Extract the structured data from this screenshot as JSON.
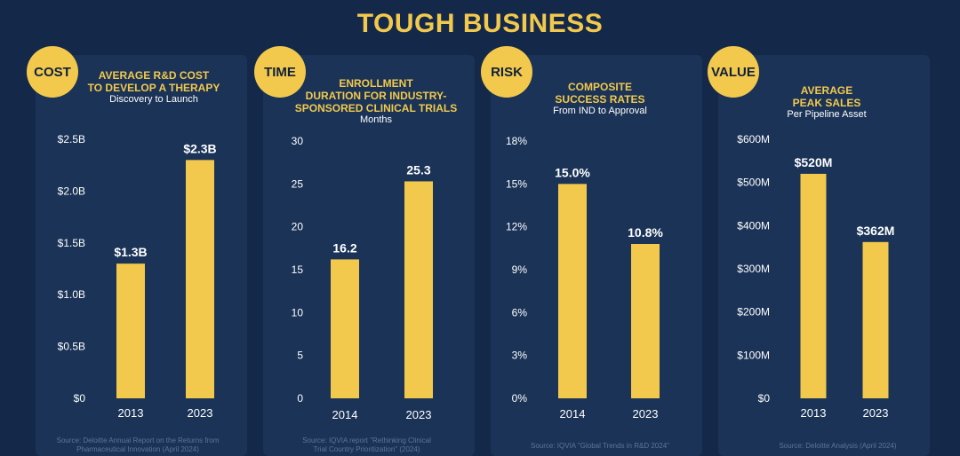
{
  "title": "TOUGH BUSINESS",
  "colors": {
    "accent": "#f2c94c",
    "background": "#14294a",
    "panel": "#1a3357"
  },
  "panels": [
    {
      "badge": "COST",
      "title_lines": [
        "AVERAGE R&D COST",
        "TO DEVELOP A THERAPY"
      ],
      "subtitle": "Discovery to Launch",
      "source_lines": [
        "Source: Deloitte Annual Report on the Returns from",
        "Pharmaceutical Innovation (April 2024)"
      ]
    },
    {
      "badge": "TIME",
      "title_lines": [
        "ENROLLMENT",
        "DURATION FOR INDUSTRY-",
        "SPONSORED CLINICAL TRIALS"
      ],
      "subtitle": "Months",
      "source_lines": [
        "Source: IQVIA report \"Rethinking Clinical",
        "Trial Country Prioritization\" (2024)"
      ]
    },
    {
      "badge": "RISK",
      "title_lines": [
        "COMPOSITE",
        "SUCCESS RATES"
      ],
      "subtitle": "From IND to Approval",
      "source_lines": [
        "Source: IQVIA \"Global Trends in R&D 2024\""
      ]
    },
    {
      "badge": "VALUE",
      "title_lines": [
        "AVERAGE",
        "PEAK SALES"
      ],
      "subtitle": "Per Pipeline Asset",
      "source_lines": [
        "Source: Deloitte Analysis (April 2024)"
      ]
    }
  ],
  "chart_data": [
    {
      "type": "bar",
      "title": "AVERAGE R&D COST TO DEVELOP A THERAPY",
      "subtitle": "Discovery to Launch",
      "categories": [
        "2013",
        "2023"
      ],
      "values": [
        1.3,
        2.3
      ],
      "value_labels": [
        "$1.3B",
        "$2.3B"
      ],
      "unit": "USD billions",
      "ylim": [
        0,
        2.5
      ],
      "yticks": [
        0,
        0.5,
        1.0,
        1.5,
        2.0,
        2.5
      ],
      "ytick_labels": [
        "$0",
        "$0.5B",
        "$1.0B",
        "$1.5B",
        "$2.0B",
        "$2.5B"
      ],
      "grid": false
    },
    {
      "type": "bar",
      "title": "ENROLLMENT DURATION FOR INDUSTRY-SPONSORED CLINICAL TRIALS",
      "subtitle": "Months",
      "categories": [
        "2014",
        "2023"
      ],
      "values": [
        16.2,
        25.3
      ],
      "value_labels": [
        "16.2",
        "25.3"
      ],
      "unit": "months",
      "ylim": [
        0,
        30
      ],
      "yticks": [
        0,
        5,
        10,
        15,
        20,
        25,
        30
      ],
      "ytick_labels": [
        "0",
        "5",
        "10",
        "15",
        "20",
        "25",
        "30"
      ],
      "grid": false
    },
    {
      "type": "bar",
      "title": "COMPOSITE SUCCESS RATES",
      "subtitle": "From IND to Approval",
      "categories": [
        "2014",
        "2023"
      ],
      "values": [
        15.0,
        10.8
      ],
      "value_labels": [
        "15.0%",
        "10.8%"
      ],
      "unit": "percent",
      "ylim": [
        0,
        18
      ],
      "yticks": [
        0,
        3,
        6,
        9,
        12,
        15,
        18
      ],
      "ytick_labels": [
        "0%",
        "3%",
        "6%",
        "9%",
        "12%",
        "15%",
        "18%"
      ],
      "grid": false
    },
    {
      "type": "bar",
      "title": "AVERAGE PEAK SALES",
      "subtitle": "Per Pipeline Asset",
      "categories": [
        "2013",
        "2023"
      ],
      "values": [
        520,
        362
      ],
      "value_labels": [
        "$520M",
        "$362M"
      ],
      "unit": "USD millions",
      "ylim": [
        0,
        600
      ],
      "yticks": [
        0,
        100,
        200,
        300,
        400,
        500,
        600
      ],
      "ytick_labels": [
        "$0",
        "$100M",
        "$200M",
        "$300M",
        "$400M",
        "$500M",
        "$600M"
      ],
      "grid": false
    }
  ]
}
